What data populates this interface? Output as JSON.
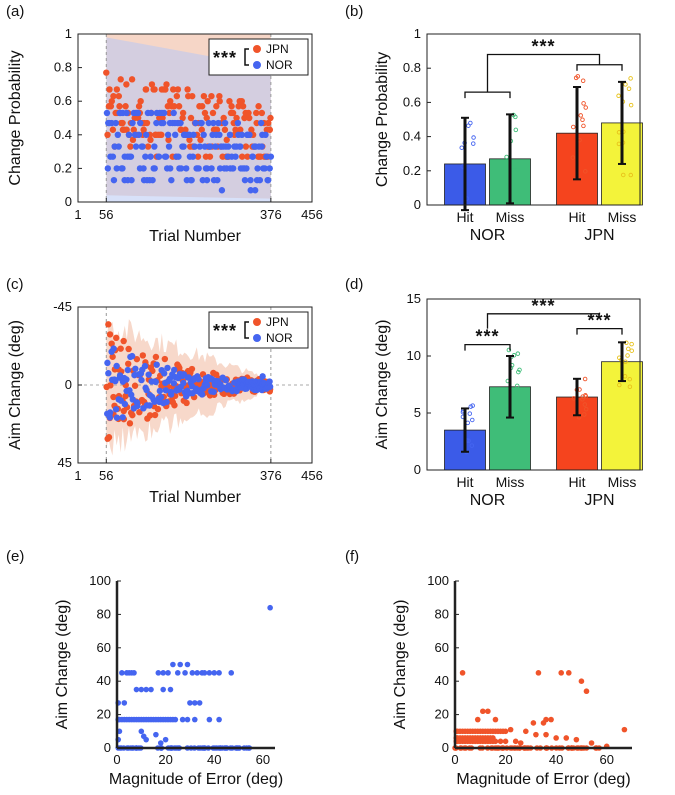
{
  "panels": {
    "a": "(a)",
    "b": "(b)",
    "c": "(c)",
    "d": "(d)",
    "e": "(e)",
    "f": "(f)"
  },
  "colors": {
    "jpn": "#f0542a",
    "nor": "#4565f0",
    "nor_hit_bar": "#3b5be8",
    "nor_miss_bar": "#3fbd78",
    "jpn_hit_bar": "#f5441e",
    "jpn_miss_bar": "#f3f33a",
    "jpn_band": "#f3c8b4",
    "nor_band": "#b8c8f4"
  },
  "legend": {
    "jpn": "JPN",
    "nor": "NOR",
    "sig": "***"
  },
  "sig_label": "***",
  "chart_data": [
    {
      "id": "a",
      "type": "scatter",
      "xlabel": "Trial Number",
      "ylabel": "Change Probability",
      "xlim": [
        1,
        456
      ],
      "ylim": [
        0,
        1
      ],
      "xticks": [
        "1",
        "56",
        "376",
        "456"
      ],
      "xtick_values": [
        1,
        56,
        376,
        456
      ],
      "yticks": [
        "0",
        "0.2",
        "0.4",
        "0.6",
        "0.8",
        "1"
      ],
      "ytick_values": [
        0,
        0.2,
        0.4,
        0.6,
        0.8,
        1
      ],
      "x_range": [
        56,
        376
      ],
      "series": [
        {
          "name": "JPN",
          "levels": [
            0.27,
            0.33,
            0.37,
            0.4,
            0.43,
            0.47,
            0.5,
            0.53,
            0.57,
            0.6,
            0.63,
            0.67,
            0.7,
            0.73,
            0.77,
            0.83
          ],
          "mean_start": 0.55,
          "mean_end": 0.4
        },
        {
          "name": "NOR",
          "levels": [
            0.0,
            0.07,
            0.13,
            0.2,
            0.27,
            0.33,
            0.4,
            0.47,
            0.53
          ],
          "mean_start": 0.4,
          "mean_end": 0.25
        }
      ],
      "significance": "***"
    },
    {
      "id": "b",
      "type": "bar",
      "ylabel": "Change Probability",
      "ylim": [
        0,
        1
      ],
      "yticks": [
        "0",
        "0.2",
        "0.4",
        "0.6",
        "0.8",
        "1"
      ],
      "ytick_values": [
        0,
        0.2,
        0.4,
        0.6,
        0.8,
        1
      ],
      "groups": [
        "NOR",
        "JPN"
      ],
      "categories": [
        "Hit",
        "Miss",
        "Hit",
        "Miss"
      ],
      "values": [
        0.24,
        0.27,
        0.42,
        0.48
      ],
      "errors": [
        0.27,
        0.26,
        0.27,
        0.24
      ],
      "significance": [
        {
          "label": "***",
          "between": "NOR vs JPN"
        }
      ]
    },
    {
      "id": "c",
      "type": "scatter",
      "xlabel": "Trial Number",
      "ylabel": "Aim Change (deg)",
      "xlim": [
        1,
        456
      ],
      "ylim": [
        45,
        -45
      ],
      "xticks": [
        "1",
        "56",
        "376",
        "456"
      ],
      "xtick_values": [
        1,
        56,
        376,
        456
      ],
      "yticks": [
        "-45",
        "0",
        "45"
      ],
      "ytick_values": [
        -45,
        0,
        45
      ],
      "x_range": [
        56,
        376
      ],
      "series": [
        {
          "name": "JPN",
          "spread_start": 30,
          "spread_end": 4,
          "outliers": [
            [
              60,
              -35
            ],
            [
              63,
              19
            ],
            [
              70,
              17
            ],
            [
              72,
              12
            ],
            [
              80,
              -9
            ],
            [
              90,
              15
            ],
            [
              130,
              10
            ],
            [
              215,
              -8
            ]
          ]
        },
        {
          "name": "NOR",
          "spread_start": 20,
          "spread_end": 3,
          "outliers": [
            [
              62,
              17
            ],
            [
              75,
              14
            ],
            [
              360,
              -5
            ]
          ]
        }
      ],
      "significance": "***"
    },
    {
      "id": "d",
      "type": "bar",
      "ylabel": "Aim Change (deg)",
      "ylim": [
        0,
        15
      ],
      "yticks": [
        "0",
        "5",
        "10",
        "15"
      ],
      "ytick_values": [
        0,
        5,
        10,
        15
      ],
      "groups": [
        "NOR",
        "JPN"
      ],
      "categories": [
        "Hit",
        "Miss",
        "Hit",
        "Miss"
      ],
      "values": [
        3.5,
        7.3,
        6.4,
        9.5
      ],
      "errors": [
        1.9,
        2.7,
        1.6,
        1.7
      ],
      "significance": [
        {
          "label": "***",
          "between": "NOR Hit vs NOR Miss"
        },
        {
          "label": "***",
          "between": "JPN Hit vs JPN Miss"
        },
        {
          "label": "***",
          "between": "NOR vs JPN"
        }
      ]
    },
    {
      "id": "e",
      "type": "scatter",
      "series_name": "NOR",
      "xlabel": "Magnitude of Error (deg)",
      "ylabel": "Aim Change (deg)",
      "xlim": [
        0,
        65
      ],
      "ylim": [
        0,
        100
      ],
      "xticks": [
        "0",
        "20",
        "40",
        "60"
      ],
      "xtick_values": [
        0,
        20,
        40,
        60
      ],
      "yticks": [
        "0",
        "20",
        "40",
        "60",
        "80",
        "100"
      ],
      "ytick_values": [
        0,
        20,
        40,
        60,
        80,
        100
      ],
      "points": [
        [
          63,
          84
        ],
        [
          0.5,
          27
        ],
        [
          0.5,
          17
        ],
        [
          1,
          10
        ],
        [
          0.5,
          5
        ],
        [
          2,
          45
        ],
        [
          4,
          45
        ],
        [
          5,
          45
        ],
        [
          6,
          45
        ],
        [
          7,
          45
        ],
        [
          8,
          35
        ],
        [
          10,
          35
        ],
        [
          12,
          35
        ],
        [
          14,
          35
        ],
        [
          19,
          35
        ],
        [
          22,
          35
        ],
        [
          17,
          45
        ],
        [
          19,
          45
        ],
        [
          21,
          45
        ],
        [
          23,
          50
        ],
        [
          25,
          45
        ],
        [
          26,
          50
        ],
        [
          28,
          45
        ],
        [
          29,
          50
        ],
        [
          31,
          45
        ],
        [
          33,
          45
        ],
        [
          35,
          45
        ],
        [
          36,
          45
        ],
        [
          38,
          45
        ],
        [
          40,
          45
        ],
        [
          42,
          45
        ],
        [
          47,
          45
        ],
        [
          3,
          27
        ],
        [
          30,
          27
        ],
        [
          32,
          27
        ],
        [
          34,
          27
        ],
        [
          1,
          17
        ],
        [
          2,
          17
        ],
        [
          3,
          17
        ],
        [
          4,
          17
        ],
        [
          5,
          17
        ],
        [
          6,
          17
        ],
        [
          7,
          17
        ],
        [
          8,
          17
        ],
        [
          9,
          17
        ],
        [
          10,
          17
        ],
        [
          11,
          17
        ],
        [
          12,
          17
        ],
        [
          13,
          17
        ],
        [
          14,
          17
        ],
        [
          15,
          17
        ],
        [
          16,
          17
        ],
        [
          17,
          17
        ],
        [
          18,
          17
        ],
        [
          19,
          17
        ],
        [
          20,
          17
        ],
        [
          21,
          17
        ],
        [
          22,
          17
        ],
        [
          23,
          17
        ],
        [
          24,
          17
        ],
        [
          27,
          17
        ],
        [
          29,
          17
        ],
        [
          32,
          17
        ],
        [
          38,
          17
        ],
        [
          42,
          17
        ],
        [
          10,
          10
        ],
        [
          11,
          7
        ],
        [
          12,
          5
        ],
        [
          16,
          8
        ],
        [
          18,
          3
        ],
        [
          20,
          5
        ]
      ]
    },
    {
      "id": "f",
      "type": "scatter",
      "series_name": "JPN",
      "xlabel": "Magnitude of Error (deg)",
      "ylabel": "Aim Change (deg)",
      "xlim": [
        0,
        70
      ],
      "ylim": [
        0,
        100
      ],
      "xticks": [
        "0",
        "20",
        "40",
        "60"
      ],
      "xtick_values": [
        0,
        20,
        40,
        60
      ],
      "yticks": [
        "0",
        "20",
        "40",
        "60",
        "80",
        "100"
      ],
      "ytick_values": [
        0,
        20,
        40,
        60,
        80,
        100
      ],
      "points": [
        [
          3,
          45
        ],
        [
          33,
          45
        ],
        [
          42,
          45
        ],
        [
          45,
          45
        ],
        [
          50,
          40
        ],
        [
          52,
          34
        ],
        [
          67,
          11
        ],
        [
          11,
          22
        ],
        [
          13,
          22
        ],
        [
          9,
          17
        ],
        [
          16,
          17
        ],
        [
          36,
          17
        ],
        [
          38,
          17
        ],
        [
          31,
          15
        ],
        [
          35,
          15
        ],
        [
          22,
          11
        ],
        [
          28,
          10
        ],
        [
          32,
          8
        ],
        [
          36,
          8
        ],
        [
          40,
          6
        ],
        [
          44,
          6
        ],
        [
          48,
          5
        ],
        [
          54,
          3
        ],
        [
          60,
          1
        ],
        [
          0.5,
          10
        ],
        [
          1,
          10
        ],
        [
          2,
          10
        ],
        [
          3,
          10
        ],
        [
          4,
          10
        ],
        [
          5,
          10
        ],
        [
          6,
          10
        ],
        [
          7,
          10
        ],
        [
          8,
          10
        ],
        [
          9,
          10
        ],
        [
          10,
          10
        ],
        [
          11,
          10
        ],
        [
          12,
          10
        ],
        [
          13,
          10
        ],
        [
          14,
          10
        ],
        [
          15,
          10
        ],
        [
          16,
          10
        ],
        [
          17,
          10
        ],
        [
          18,
          10
        ],
        [
          19,
          10
        ],
        [
          20,
          10
        ],
        [
          0.5,
          6
        ],
        [
          1,
          6
        ],
        [
          2,
          6
        ],
        [
          3,
          6
        ],
        [
          4,
          6
        ],
        [
          5,
          6
        ],
        [
          6,
          6
        ],
        [
          7,
          6
        ],
        [
          8,
          6
        ],
        [
          9,
          6
        ],
        [
          10,
          6
        ],
        [
          11,
          6
        ],
        [
          12,
          6
        ],
        [
          13,
          6
        ],
        [
          14,
          6
        ],
        [
          15,
          6
        ],
        [
          0.5,
          4
        ],
        [
          1,
          4
        ],
        [
          2,
          4
        ],
        [
          3,
          4
        ],
        [
          4,
          4
        ],
        [
          5,
          4
        ],
        [
          6,
          4
        ],
        [
          7,
          4
        ],
        [
          8,
          4
        ],
        [
          9,
          4
        ],
        [
          10,
          4
        ],
        [
          11,
          4
        ],
        [
          12,
          4
        ],
        [
          13,
          4
        ],
        [
          14,
          4
        ],
        [
          15,
          4
        ],
        [
          16,
          4
        ],
        [
          18,
          4
        ],
        [
          20,
          4
        ],
        [
          24,
          4
        ],
        [
          26,
          3
        ]
      ]
    }
  ]
}
